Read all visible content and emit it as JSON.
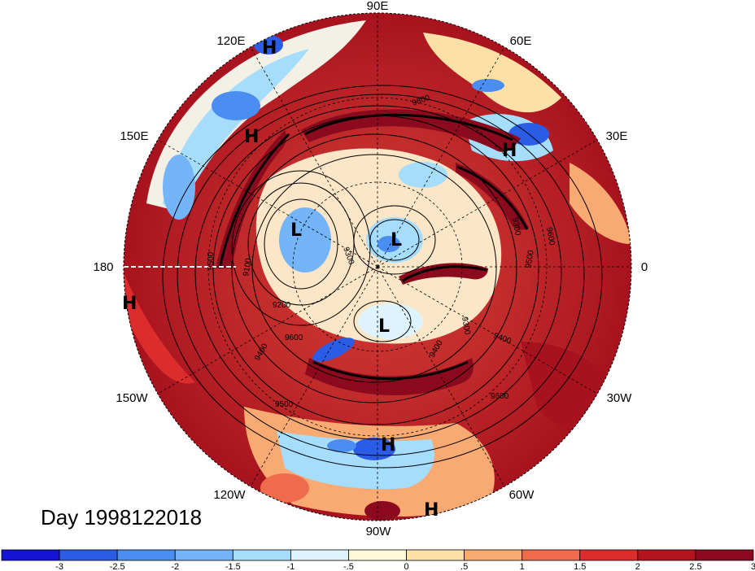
{
  "map": {
    "projection": "north-polar-stereographic",
    "date_label": "Day 1998122018",
    "longitude_labels": [
      "90E",
      "60E",
      "30E",
      "0",
      "30W",
      "60W",
      "90W",
      "120W",
      "150W",
      "180",
      "150E",
      "120E"
    ],
    "pressure_centers": [
      {
        "type": "H"
      },
      {
        "type": "H"
      },
      {
        "type": "H"
      },
      {
        "type": "H"
      },
      {
        "type": "H"
      },
      {
        "type": "H"
      },
      {
        "type": "L"
      },
      {
        "type": "L"
      },
      {
        "type": "L"
      }
    ],
    "contour_labels": [
      "9100",
      "9200",
      "9300",
      "9400",
      "9500",
      "9600",
      "9300",
      "9400",
      "9500",
      "9600",
      "9800",
      "9300",
      "9400",
      "9500",
      "9600"
    ]
  },
  "colorbar": {
    "tick_labels": [
      "-3",
      "-2.5",
      "-2",
      "-1.5",
      "-1",
      "-.5",
      "0",
      ".5",
      "1",
      "1.5",
      "2",
      "2.5",
      "3"
    ],
    "colors": [
      "#1414d2",
      "#2b5ce6",
      "#4a8ef2",
      "#74b4f8",
      "#a6dcfc",
      "#ddf4fe",
      "#fdf9d8",
      "#fde0a8",
      "#f9aa72",
      "#f06a4c",
      "#dc2c2c",
      "#b4141e",
      "#8c0a1e"
    ]
  }
}
